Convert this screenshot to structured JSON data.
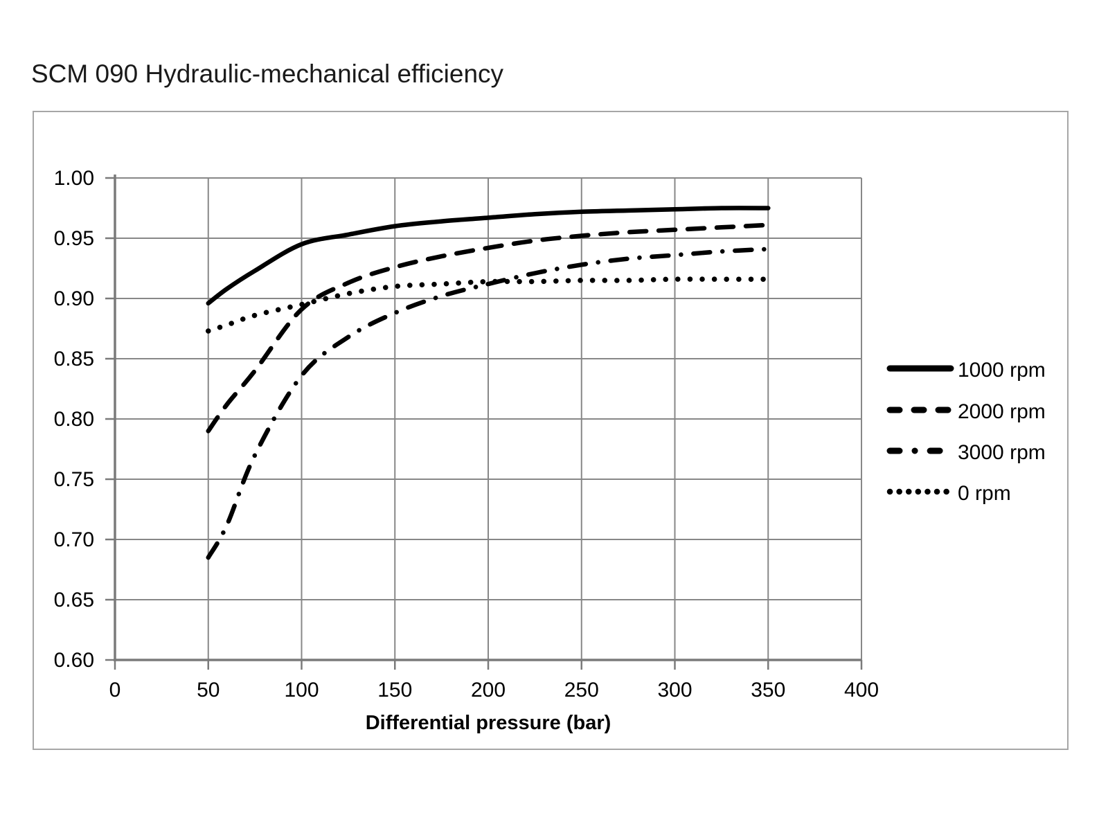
{
  "page": {
    "title": "SCM 090 Hydraulic-mechanical efficiency"
  },
  "chart_data": {
    "type": "line",
    "title": "SCM 090 Hydraulic-mechanical efficiency",
    "xlabel": "Differential pressure (bar)",
    "ylabel": "",
    "xlim": [
      0,
      400
    ],
    "ylim": [
      0.6,
      1.0
    ],
    "grid": true,
    "legend_position": "right",
    "x_ticks": [
      0,
      50,
      100,
      150,
      200,
      250,
      300,
      350,
      400
    ],
    "x_tick_labels": [
      "0",
      "50",
      "100",
      "150",
      "200",
      "250",
      "300",
      "350",
      "400"
    ],
    "y_ticks": [
      0.6,
      0.65,
      0.7,
      0.75,
      0.8,
      0.85,
      0.9,
      0.95,
      1.0
    ],
    "y_tick_labels": [
      "0.60",
      "0.65",
      "0.70",
      "0.75",
      "0.80",
      "0.85",
      "0.90",
      "0.95",
      "1.00"
    ],
    "x": [
      50,
      60,
      75,
      100,
      125,
      150,
      175,
      200,
      225,
      250,
      275,
      300,
      325,
      350
    ],
    "series": [
      {
        "name": "1000 rpm",
        "line_style": "solid",
        "values": [
          0.896,
          0.908,
          0.923,
          0.945,
          0.953,
          0.96,
          0.964,
          0.967,
          0.97,
          0.972,
          0.973,
          0.974,
          0.975,
          0.975
        ]
      },
      {
        "name": "2000 rpm",
        "line_style": "dashed",
        "values": [
          0.79,
          0.812,
          0.84,
          0.891,
          0.913,
          0.926,
          0.935,
          0.942,
          0.948,
          0.952,
          0.955,
          0.957,
          0.959,
          0.961
        ]
      },
      {
        "name": "3000 rpm",
        "line_style": "dash-dot",
        "values": [
          0.685,
          0.712,
          0.77,
          0.836,
          0.868,
          0.888,
          0.902,
          0.912,
          0.921,
          0.928,
          0.933,
          0.936,
          0.939,
          0.941
        ]
      },
      {
        "name": "0 rpm",
        "line_style": "dotted",
        "values": [
          0.873,
          0.878,
          0.886,
          0.895,
          0.904,
          0.91,
          0.912,
          0.914,
          0.914,
          0.915,
          0.915,
          0.916,
          0.916,
          0.916
        ]
      }
    ],
    "colors": {
      "series_line": "#000000",
      "gridline": "#878787",
      "axis_line": "#7a7a7a",
      "frame_border": "#a6a6a6",
      "text": "#000000",
      "title_text": "#1a1a1a"
    }
  }
}
